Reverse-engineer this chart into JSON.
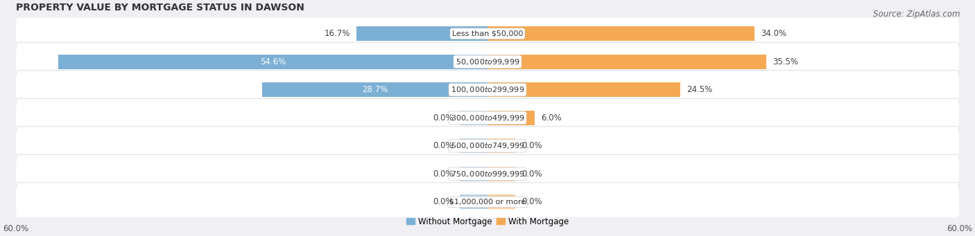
{
  "title": "PROPERTY VALUE BY MORTGAGE STATUS IN DAWSON",
  "source": "Source: ZipAtlas.com",
  "categories": [
    "Less than $50,000",
    "$50,000 to $99,999",
    "$100,000 to $299,999",
    "$300,000 to $499,999",
    "$500,000 to $749,999",
    "$750,000 to $999,999",
    "$1,000,000 or more"
  ],
  "without_mortgage": [
    16.7,
    54.6,
    28.7,
    0.0,
    0.0,
    0.0,
    0.0
  ],
  "with_mortgage": [
    34.0,
    35.5,
    24.5,
    6.0,
    0.0,
    0.0,
    0.0
  ],
  "xlim": 60.0,
  "bar_color_without": "#7bafd4",
  "bar_color_with": "#f5a952",
  "bar_color_without_light": "#b8d4ea",
  "bar_color_with_light": "#f8cfa0",
  "row_bg_color": "#e8e8ec",
  "row_bg_color_alt": "#f0f0f4",
  "title_fontsize": 10,
  "source_fontsize": 8.5,
  "tick_fontsize": 8.5,
  "bar_label_fontsize": 8.5,
  "category_label_fontsize": 8,
  "legend_fontsize": 8.5,
  "zero_stub": 3.5
}
